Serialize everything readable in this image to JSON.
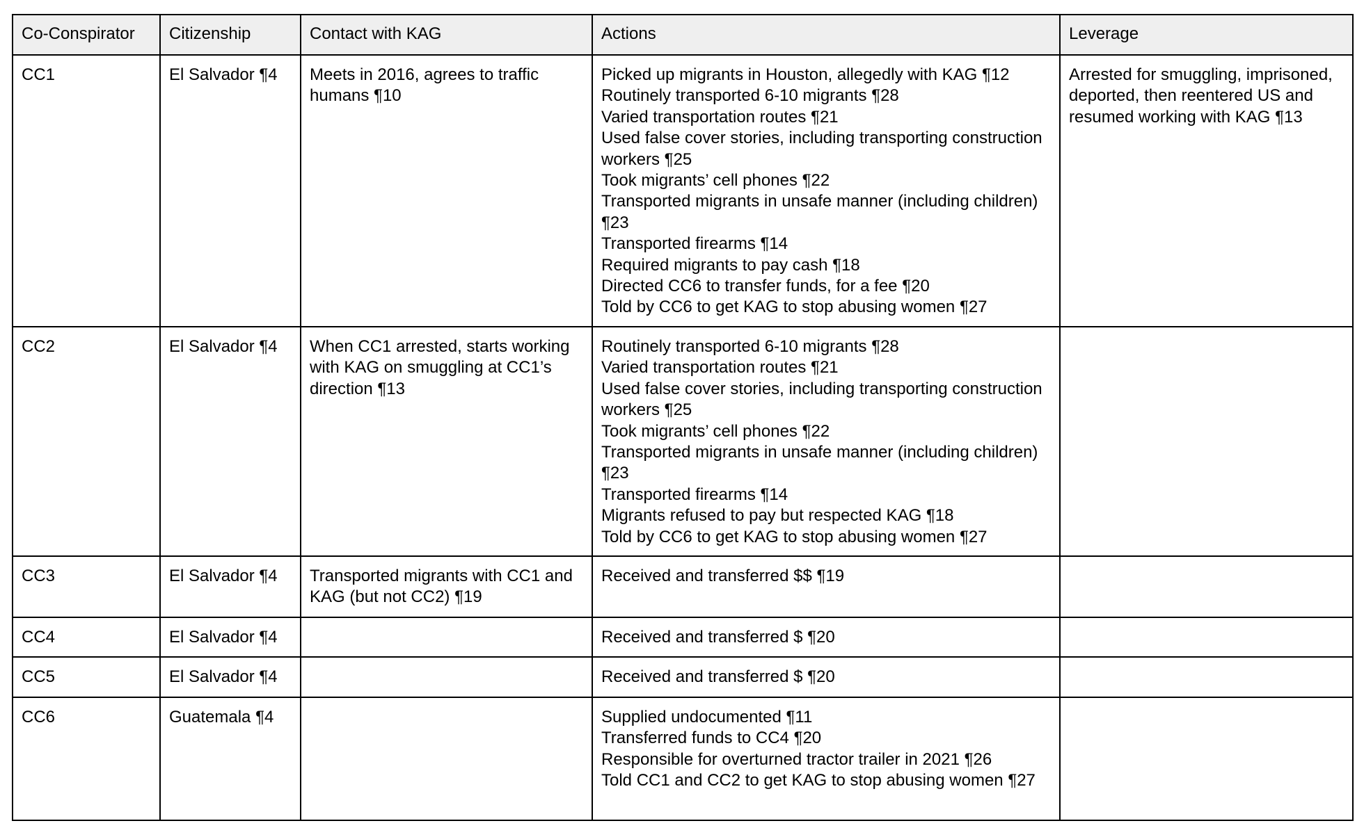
{
  "headers": [
    "Co-Conspirator",
    "Citizenship",
    "Contact with KAG",
    "Actions",
    "Leverage"
  ],
  "rows": [
    {
      "name": "CC1",
      "citizenship": "El Salvador ¶4",
      "contact": "Meets in 2016, agrees to traffic humans ¶10",
      "actions": [
        "Picked up migrants in Houston, allegedly with KAG ¶12",
        "Routinely transported 6-10 migrants ¶28",
        "Varied transportation routes ¶21",
        "Used false cover stories, including transporting construction workers ¶25",
        "Took migrants’ cell phones ¶22",
        "Transported migrants in unsafe manner (including children) ¶23",
        "Transported firearms ¶14",
        "Required migrants to pay cash ¶18",
        "Directed CC6 to transfer funds, for a fee ¶20",
        "Told by CC6 to get KAG to stop abusing women ¶27"
      ],
      "leverage": "Arrested for smuggling, imprisoned, deported, then reentered US and resumed working with KAG ¶13"
    },
    {
      "name": "CC2",
      "citizenship": "El Salvador ¶4",
      "contact": "When CC1 arrested, starts working with KAG on smuggling at CC1’s direction ¶13",
      "actions": [
        "Routinely transported 6-10 migrants ¶28",
        "Varied transportation routes ¶21",
        "Used false cover stories, including transporting construction workers ¶25",
        "Took migrants’ cell phones ¶22",
        "Transported migrants in unsafe manner (including children) ¶23",
        "Transported firearms ¶14",
        "Migrants refused to pay but respected KAG ¶18",
        "Told by CC6 to get KAG to stop abusing women ¶27"
      ],
      "leverage": ""
    },
    {
      "name": "CC3",
      "citizenship": "El Salvador ¶4",
      "contact": "Transported migrants with CC1 and KAG (but not CC2) ¶19",
      "actions": [
        "Received and transferred $$ ¶19"
      ],
      "leverage": ""
    },
    {
      "name": "CC4",
      "citizenship": "El Salvador ¶4",
      "contact": "",
      "actions": [
        "Received and transferred $ ¶20"
      ],
      "leverage": ""
    },
    {
      "name": "CC5",
      "citizenship": "El Salvador ¶4",
      "contact": "",
      "actions": [
        "Received and transferred $ ¶20"
      ],
      "leverage": ""
    },
    {
      "name": "CC6",
      "citizenship": "Guatemala ¶4",
      "contact": "",
      "actions": [
        "Supplied undocumented ¶11",
        "Transferred funds to CC4 ¶20",
        "Responsible for overturned tractor trailer in 2021 ¶26",
        "Told CC1 and CC2 to get KAG to stop abusing women ¶27"
      ],
      "leverage": ""
    }
  ]
}
